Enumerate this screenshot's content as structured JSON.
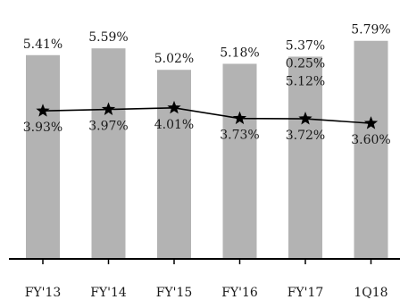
{
  "chart_data": {
    "type": "bar",
    "categories": [
      "FY'13",
      "FY'14",
      "FY'15",
      "FY'16",
      "FY'17",
      "1Q18"
    ],
    "bar_values": [
      5.41,
      5.59,
      5.02,
      5.18,
      5.37,
      5.79
    ],
    "bar_labels": [
      "5.41%",
      "5.59%",
      "5.02%",
      "5.18%",
      "5.37%",
      "5.79%"
    ],
    "extra_labels": [
      {
        "category": "FY'17",
        "text": "0.25%",
        "value": 0.25
      },
      {
        "category": "FY'17",
        "text": "5.12%",
        "value": 5.12
      }
    ],
    "line_values": [
      3.93,
      3.97,
      4.01,
      3.73,
      3.72,
      3.6
    ],
    "line_labels": [
      "3.93%",
      "3.97%",
      "4.01%",
      "3.73%",
      "3.72%",
      "3.60%"
    ],
    "line_marker": "star",
    "ylim": [
      0,
      6.4
    ],
    "grid": false,
    "colors": {
      "bar": "#b3b3b3",
      "line": "#000000",
      "text": "#1a1a1a",
      "axis": "#000000"
    }
  }
}
